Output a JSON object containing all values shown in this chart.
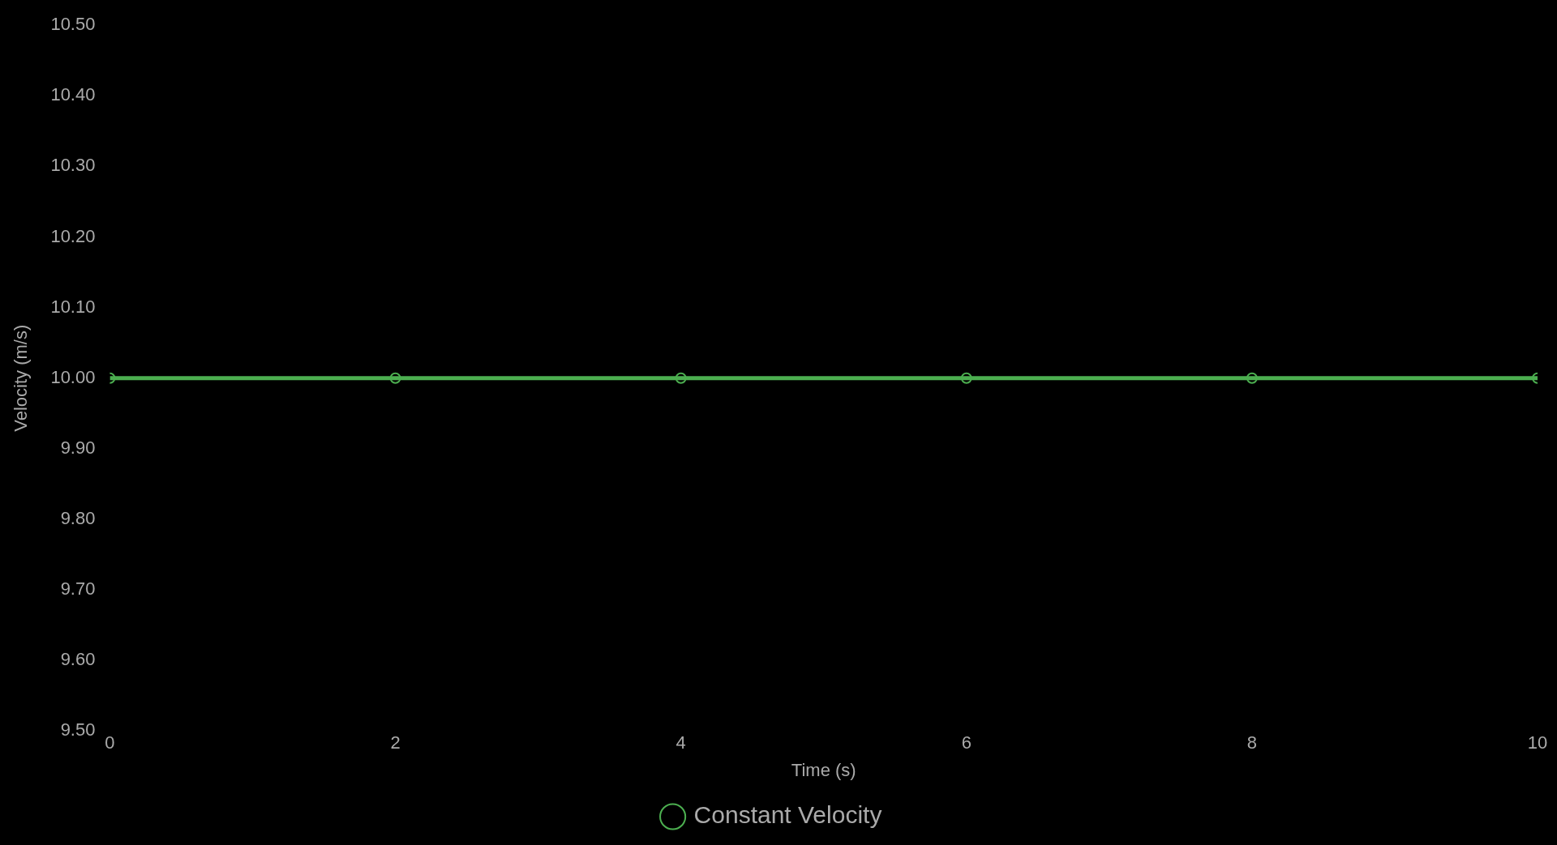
{
  "chart_data": {
    "type": "line",
    "xlabel": "Time (s)",
    "ylabel": "Velocity (m/s)",
    "x": [
      0,
      2,
      4,
      6,
      8,
      10
    ],
    "series": [
      {
        "name": "Constant Velocity",
        "color": "#4caf50",
        "values": [
          10,
          10,
          10,
          10,
          10,
          10
        ]
      }
    ],
    "xlim": [
      0,
      10
    ],
    "xticks": [
      0,
      2,
      4,
      6,
      8,
      10
    ],
    "ylim": [
      9.5,
      10.5
    ],
    "yticks": [
      {
        "value": 9.5,
        "label": "9.50"
      },
      {
        "value": 9.6,
        "label": "9.60"
      },
      {
        "value": 9.7,
        "label": "9.70"
      },
      {
        "value": 9.8,
        "label": "9.80"
      },
      {
        "value": 9.9,
        "label": "9.90"
      },
      {
        "value": 10,
        "label": "10.00"
      },
      {
        "value": 10.1,
        "label": "10.10"
      },
      {
        "value": 10.2,
        "label": "10.20"
      },
      {
        "value": 10.3,
        "label": "10.30"
      },
      {
        "value": 10.4,
        "label": "10.40"
      },
      {
        "value": 10.5,
        "label": "10.50"
      }
    ],
    "grid": false,
    "legend": "bottom",
    "marker": "circle",
    "line_style": "solid"
  }
}
